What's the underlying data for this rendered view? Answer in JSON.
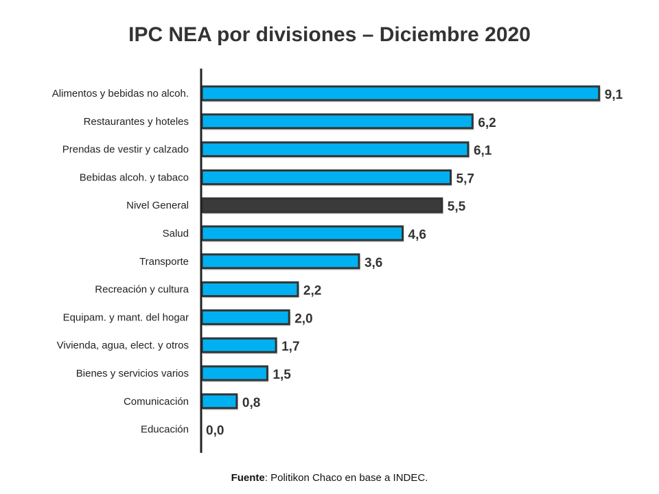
{
  "chart_data": {
    "type": "bar",
    "orientation": "horizontal",
    "title": "IPC NEA por divisiones – Diciembre 2020",
    "categories": [
      "Alimentos y bebidas no alcoh.",
      "Restaurantes y hoteles",
      "Prendas de vestir y calzado",
      "Bebidas alcoh. y tabaco",
      "Nivel General",
      "Salud",
      "Transporte",
      "Recreación y cultura",
      "Equipam. y mant. del hogar",
      "Vivienda, agua, elect. y otros",
      "Bienes y servicios varios",
      "Comunicación",
      "Educación"
    ],
    "values": [
      9.1,
      6.2,
      6.1,
      5.7,
      5.5,
      4.6,
      3.6,
      2.2,
      2.0,
      1.7,
      1.5,
      0.8,
      0.0
    ],
    "value_labels": [
      "9,1",
      "6,2",
      "6,1",
      "5,7",
      "5,5",
      "4,6",
      "3,6",
      "2,2",
      "2,0",
      "1,7",
      "1,5",
      "0,8",
      "0,0"
    ],
    "highlight_category": "Nivel General",
    "xlim": [
      0,
      10
    ],
    "grid": false,
    "colors": {
      "bar": "#00b0f0",
      "highlight": "#3a3a3a",
      "outline": "#333333"
    }
  },
  "source": {
    "label": "Fuente",
    "text": ": Politikon Chaco en base a INDEC."
  }
}
